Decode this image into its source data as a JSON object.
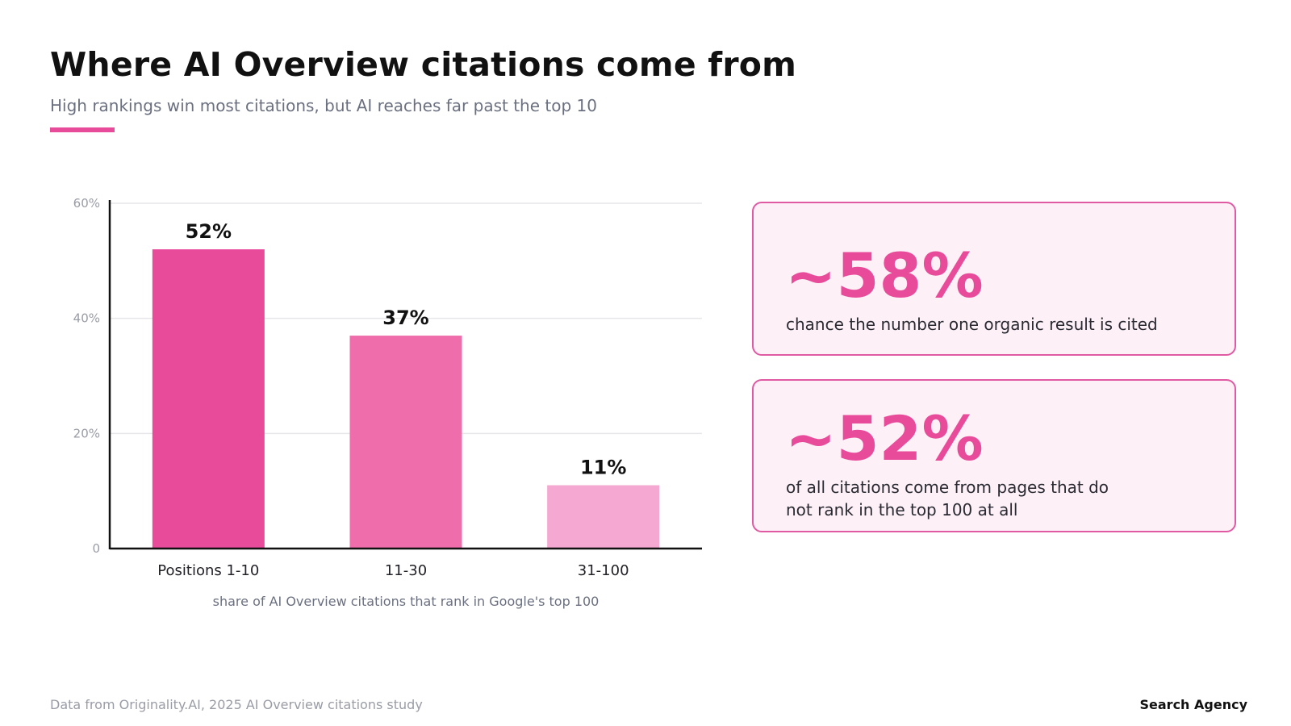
{
  "header": {
    "title": "Where AI Overview citations come from",
    "subtitle": "High rankings win most citations, but AI reaches far past the top 10"
  },
  "colors": {
    "accent": "#e94b9b",
    "bar_colors": [
      "#e94b9b",
      "#f06dab",
      "#f5a8d1"
    ],
    "card_background": "#fdf0f6",
    "card_border": "#e05aa3"
  },
  "chart_data": {
    "type": "bar",
    "categories": [
      "Positions 1-10",
      "11-30",
      "31-100"
    ],
    "values": [
      52,
      37,
      11
    ],
    "data_labels": [
      "52%",
      "37%",
      "11%"
    ],
    "title": "",
    "xlabel": "share of AI Overview citations that rank in Google's top 100",
    "ylabel": "",
    "ylim": [
      0,
      60
    ],
    "yticks": [
      0,
      20,
      40,
      60
    ],
    "ytick_labels": [
      "0",
      "20%",
      "40%",
      "60%"
    ],
    "grid": true,
    "legend": "none"
  },
  "stats": [
    {
      "value": "~58%",
      "description": "chance the number one organic result is cited"
    },
    {
      "value": "~52%",
      "description": "of all citations come from pages that do not rank in the top 100 at all"
    }
  ],
  "footer": {
    "source": "Data from Originality.AI, 2025 AI Overview citations study",
    "brand": "Search Agency"
  }
}
